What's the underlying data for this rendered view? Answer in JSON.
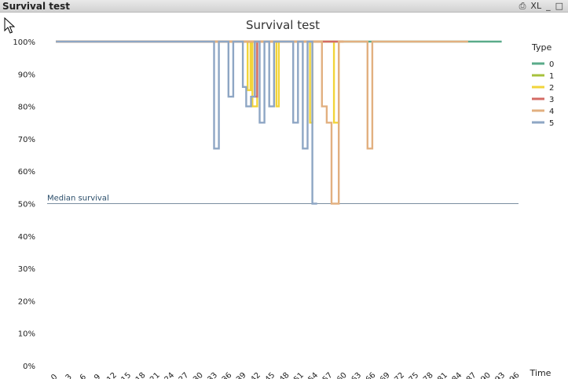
{
  "window": {
    "title": "Survival test",
    "buttons": [
      {
        "name": "print-icon",
        "label": "⎙"
      },
      {
        "name": "xl-export-button",
        "label": "XL"
      },
      {
        "name": "minimize-button",
        "label": "_"
      },
      {
        "name": "maximize-button",
        "label": "□"
      }
    ]
  },
  "chart_data": {
    "type": "line",
    "title": "Survival test",
    "xlabel": "Time",
    "ylabel": "",
    "xlim": [
      -1.5,
      96.5
    ],
    "ylim": [
      0,
      100
    ],
    "x_ticks": [
      "0",
      "3",
      "6",
      "9",
      "12",
      "15",
      "18",
      "21",
      "24",
      "27",
      "30",
      "33",
      "36",
      "39",
      "42",
      "45",
      "48",
      "51",
      "54",
      "57",
      "60",
      "63",
      "66",
      "69",
      "72",
      "75",
      "78",
      "81",
      "84",
      "87",
      "90",
      "93",
      "96"
    ],
    "y_ticks": [
      "0%",
      "10%",
      "20%",
      "30%",
      "40%",
      "50%",
      "60%",
      "70%",
      "80%",
      "90%",
      "100%"
    ],
    "legend_title": "Type",
    "legend_position": "right",
    "reference_line": {
      "label": "Median survival",
      "y": 50
    },
    "series": [
      {
        "name": "0",
        "color": "#5aab8a",
        "points": [
          [
            0,
            100
          ],
          [
            93,
            100
          ]
        ]
      },
      {
        "name": "1",
        "color": "#a7c23c",
        "points": [
          [
            0,
            100
          ],
          [
            56,
            100
          ]
        ]
      },
      {
        "name": "2",
        "color": "#f2d43a",
        "points": [
          [
            0,
            100
          ],
          [
            40,
            100
          ],
          [
            40,
            85
          ],
          [
            40.6,
            85
          ],
          [
            40.6,
            100
          ],
          [
            41,
            100
          ],
          [
            41,
            80
          ],
          [
            42,
            80
          ],
          [
            42,
            100
          ],
          [
            46,
            100
          ],
          [
            46,
            80
          ],
          [
            46.5,
            80
          ],
          [
            46.5,
            100
          ],
          [
            53,
            100
          ],
          [
            53,
            75
          ],
          [
            53.5,
            75
          ],
          [
            53.5,
            100
          ],
          [
            58,
            100
          ],
          [
            58,
            75
          ],
          [
            59,
            75
          ],
          [
            59,
            100
          ],
          [
            60,
            100
          ]
        ]
      },
      {
        "name": "3",
        "color": "#d46b65",
        "points": [
          [
            0,
            100
          ],
          [
            41.5,
            100
          ],
          [
            41.5,
            83
          ],
          [
            42,
            83
          ],
          [
            42,
            100
          ],
          [
            60,
            100
          ]
        ]
      },
      {
        "name": "4",
        "color": "#e2b080",
        "points": [
          [
            0,
            100
          ],
          [
            55.5,
            100
          ],
          [
            55.5,
            80
          ],
          [
            56.5,
            80
          ],
          [
            56.5,
            75
          ],
          [
            57.5,
            75
          ],
          [
            57.5,
            50
          ],
          [
            59,
            50
          ],
          [
            59,
            100
          ],
          [
            65,
            100
          ],
          [
            65,
            67
          ],
          [
            66,
            67
          ],
          [
            66,
            100
          ],
          [
            86,
            100
          ]
        ]
      },
      {
        "name": "5",
        "color": "#8ea6c4",
        "points": [
          [
            0,
            100
          ],
          [
            33,
            100
          ],
          [
            33,
            67
          ],
          [
            34,
            67
          ],
          [
            34,
            100
          ],
          [
            36,
            100
          ],
          [
            36,
            83
          ],
          [
            37,
            83
          ],
          [
            37,
            100
          ],
          [
            39,
            100
          ],
          [
            39,
            86
          ],
          [
            39.7,
            86
          ],
          [
            39.7,
            80
          ],
          [
            40.7,
            80
          ],
          [
            40.7,
            83
          ],
          [
            41.5,
            83
          ],
          [
            41.5,
            100
          ],
          [
            42.5,
            100
          ],
          [
            42.5,
            75
          ],
          [
            43.5,
            75
          ],
          [
            43.5,
            100
          ],
          [
            44.5,
            100
          ],
          [
            44.5,
            80
          ],
          [
            45.5,
            80
          ],
          [
            45.5,
            100
          ],
          [
            49.5,
            100
          ],
          [
            49.5,
            75
          ],
          [
            50.5,
            75
          ],
          [
            50.5,
            100
          ],
          [
            51.5,
            100
          ],
          [
            51.5,
            67
          ],
          [
            52.5,
            67
          ],
          [
            52.5,
            100
          ],
          [
            53.5,
            100
          ],
          [
            53.5,
            50
          ],
          [
            54.5,
            50
          ]
        ]
      }
    ]
  }
}
